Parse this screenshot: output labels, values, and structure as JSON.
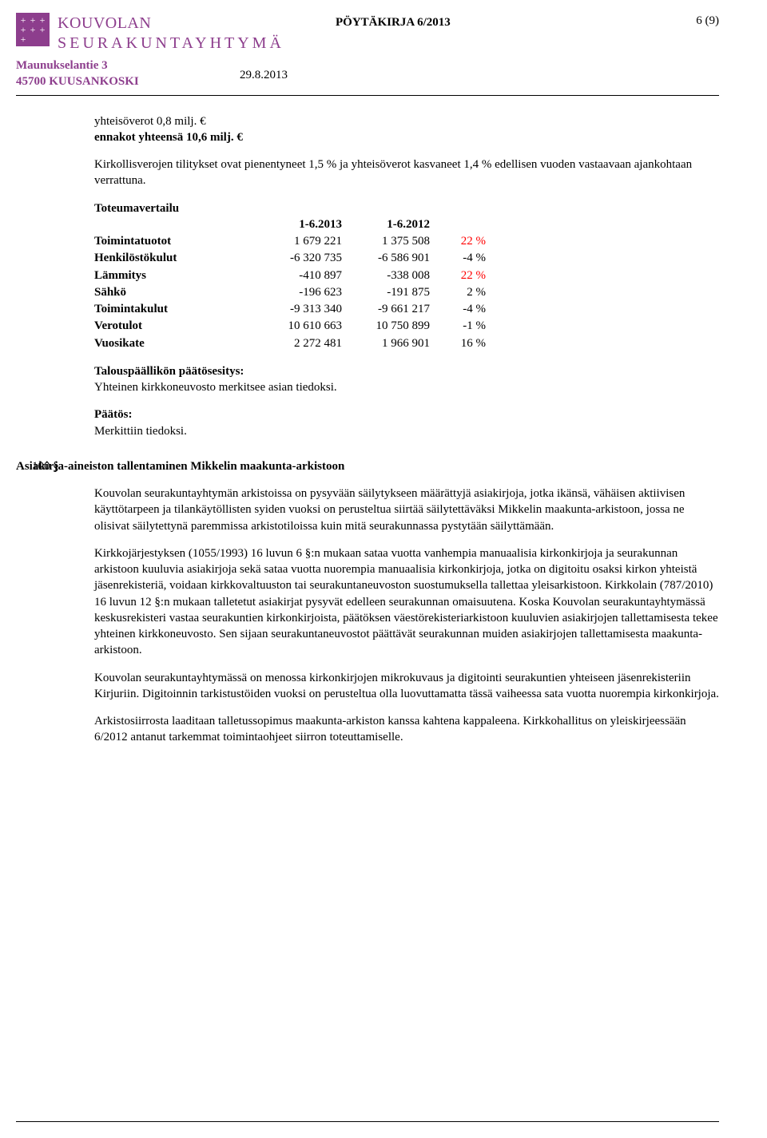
{
  "header": {
    "org_line1": "KOUVOLAN",
    "org_line2": "SEURAKUNTAYHTYMÄ",
    "address_line1": "Maunukselantie 3",
    "address_line2": "45700 KUUSANKOSKI",
    "doc_title": "PÖYTÄKIRJA 6/2013",
    "page_of": "6 (9)",
    "date": "29.8.2013"
  },
  "intro": {
    "line1": "yhteisöverot 0,8 milj. €",
    "line2": "ennakot yhteensä 10,6 milj. €",
    "para1": "Kirkollisverojen tilitykset ovat pienentyneet 1,5 % ja yhteisöverot kasvaneet 1,4 % edellisen vuoden vastaavaan ajankohtaan verrattuna."
  },
  "toteuma": {
    "title": "Toteumavertailu",
    "col1": "1-6.2013",
    "col2": "1-6.2012",
    "rows": [
      {
        "label": "Toimintatuotot",
        "v1": "1 679 221",
        "v2": "1 375 508",
        "pct": "22 %",
        "pct_red": true
      },
      {
        "label": "Henkilöstökulut",
        "v1": "-6 320 735",
        "v2": "-6 586 901",
        "pct": "-4 %",
        "pct_red": false
      },
      {
        "label": "Lämmitys",
        "v1": "-410 897",
        "v2": "-338 008",
        "pct": "22 %",
        "pct_red": true
      },
      {
        "label": "Sähkö",
        "v1": "-196 623",
        "v2": "-191 875",
        "pct": "2 %",
        "pct_red": false
      },
      {
        "label": "Toimintakulut",
        "v1": "-9 313 340",
        "v2": "-9 661 217",
        "pct": "-4 %",
        "pct_red": false
      },
      {
        "label": "Verotulot",
        "v1": "10 610 663",
        "v2": "10 750 899",
        "pct": "-1 %",
        "pct_red": false
      },
      {
        "label": "Vuosikate",
        "v1": "2 272 481",
        "v2": "1 966 901",
        "pct": "16 %",
        "pct_red": false
      }
    ]
  },
  "proposal": {
    "heading": "Talouspäällikön päätösesitys:",
    "text": "Yhteinen kirkkoneuvosto merkitsee asian tiedoksi."
  },
  "decision": {
    "heading": "Päätös:",
    "text": "Merkittiin tiedoksi."
  },
  "section100": {
    "num": "100 §",
    "title": "Asiakirja-aineiston tallentaminen Mikkelin maakunta-arkistoon",
    "p1": "Kouvolan seurakuntayhtymän arkistoissa on pysyvään säilytykseen määrättyjä asiakirjoja, jotka ikänsä, vähäisen aktiivisen käyttötarpeen ja tilankäytöllisten syiden vuoksi on perusteltua siirtää säilytettäväksi Mikkelin maakunta-arkistoon, jossa ne olisivat säilytettynä paremmissa arkistotiloissa kuin mitä seurakunnassa pystytään säilyttämään.",
    "p2": "Kirkkojärjestyksen (1055/1993) 16 luvun 6 §:n mukaan sataa vuotta vanhempia manuaalisia kirkonkirjoja ja seurakunnan arkistoon kuuluvia asiakirjoja sekä sataa vuotta nuorempia manuaalisia kirkonkirjoja, jotka on digitoitu osaksi kirkon yhteistä jäsenrekisteriä, voidaan kirkkovaltuuston tai seurakuntaneuvoston suostumuksella tallettaa yleisarkistoon. Kirkkolain (787/2010) 16 luvun 12 §:n mukaan talletetut asiakirjat pysyvät edelleen seurakunnan omaisuutena. Koska Kouvolan seurakuntayhtymässä keskusrekisteri vastaa seurakuntien kirkonkirjoista, päätöksen väestörekisteriarkistoon kuuluvien asiakirjojen tallettamisesta tekee yhteinen kirkkoneuvosto. Sen sijaan seurakuntaneuvostot päättävät seurakunnan muiden asiakirjojen tallettamisesta maakunta-arkistoon.",
    "p3": "Kouvolan seurakuntayhtymässä on menossa kirkonkirjojen mikrokuvaus ja digitointi seurakuntien yhteiseen jäsenrekisteriin Kirjuriin. Digitoinnin tarkistustöiden vuoksi on perusteltua olla luovuttamatta tässä vaiheessa sata vuotta nuorempia kirkonkirjoja.",
    "p4": "Arkistosiirrosta laaditaan talletussopimus maakunta-arkiston kanssa kahtena kappaleena. Kirkkohallitus on yleiskirjeessään 6/2012 antanut tarkemmat toimintaohjeet siirron toteuttamiselle."
  }
}
